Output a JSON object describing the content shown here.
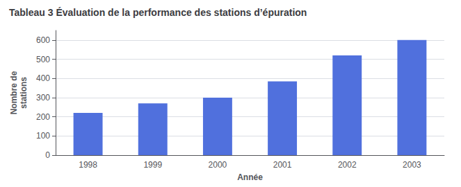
{
  "chart_data": {
    "type": "bar",
    "title": "Tableau 3 Évaluation de la performance des stations d’épuration",
    "categories": [
      "1998",
      "1999",
      "2000",
      "2001",
      "2002",
      "2003"
    ],
    "values": [
      220,
      270,
      300,
      385,
      520,
      600
    ],
    "xlabel": "Année",
    "ylabel": "Nombre de\nstations",
    "ylim": [
      0,
      650
    ],
    "yticks": [
      0,
      100,
      200,
      300,
      400,
      500,
      600
    ],
    "grid": true
  }
}
